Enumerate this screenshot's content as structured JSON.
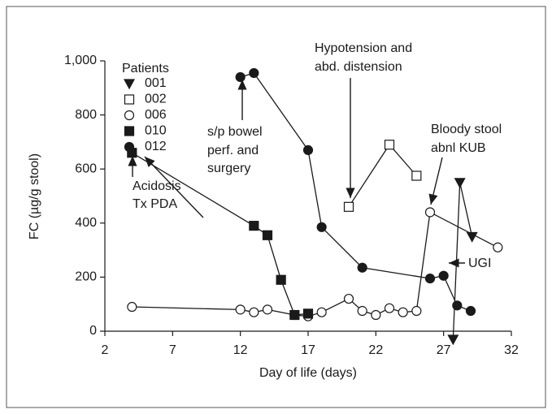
{
  "chart_data": {
    "type": "line",
    "x_label": "Day of life (days)",
    "y_label": "FC (µg/g stool)",
    "xlim": [
      2,
      32
    ],
    "xticks": [
      2,
      7,
      12,
      17,
      22,
      27,
      32
    ],
    "ylim": [
      0,
      1000
    ],
    "yticks": [
      0,
      200,
      400,
      600,
      800,
      {
        "value": 1000,
        "label": "1,000"
      }
    ],
    "legend_title": "Patients",
    "legend": "upper left",
    "series": [
      {
        "name": "001",
        "color": "#1a1a1a",
        "marker": "triangle-down",
        "x": [
          27.7,
          28.2,
          29.1
        ],
        "values": [
          -30,
          550,
          350
        ]
      },
      {
        "name": "002",
        "color": "#1a1a1a",
        "marker": "square-open",
        "x": [
          20,
          23,
          25
        ],
        "values": [
          460,
          690,
          575
        ]
      },
      {
        "name": "006",
        "color": "#1a1a1a",
        "marker": "circle-open",
        "x": [
          4,
          12,
          13,
          14,
          16,
          17,
          18,
          20,
          21,
          22,
          23,
          24,
          25,
          26,
          31
        ],
        "values": [
          90,
          80,
          70,
          80,
          60,
          55,
          70,
          120,
          75,
          60,
          85,
          70,
          75,
          440,
          310
        ]
      },
      {
        "name": "010",
        "color": "#1a1a1a",
        "marker": "square",
        "x": [
          4,
          13,
          14,
          15,
          16,
          17
        ],
        "values": [
          660,
          390,
          355,
          190,
          60,
          65
        ]
      },
      {
        "name": "012",
        "color": "#1a1a1a",
        "marker": "circle",
        "x": [
          12,
          13,
          17,
          18,
          21,
          26,
          27,
          28,
          29
        ],
        "values": [
          940,
          955,
          670,
          385,
          235,
          195,
          205,
          95,
          75
        ]
      }
    ],
    "annotations": [
      {
        "lines": [
          "Acidosis",
          "Tx PDA"
        ]
      },
      {
        "lines": [
          "s/p bowel",
          "perf. and",
          "surgery"
        ]
      },
      {
        "lines": [
          "Hypotension and",
          "abd. distension"
        ]
      },
      {
        "lines": [
          "Bloody stool",
          "abnl KUB"
        ]
      },
      {
        "lines": [
          "UGI"
        ]
      }
    ]
  }
}
